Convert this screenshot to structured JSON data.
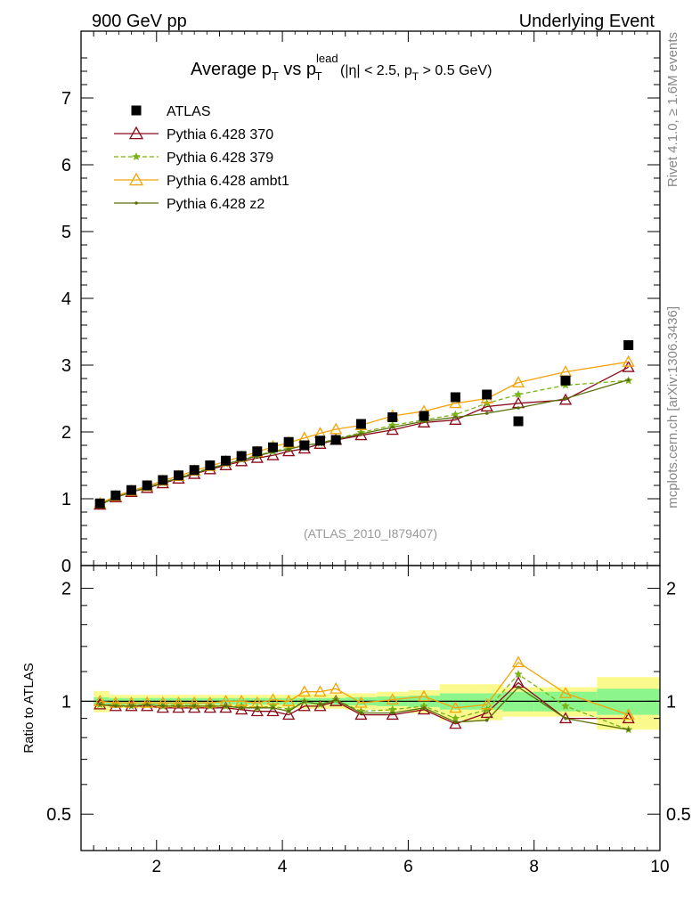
{
  "header": {
    "left": "900 GeV pp",
    "right": "Underlying Event",
    "analysis_id": "(ATLAS_2010_I879407)",
    "side_right_top": "Rivet 4.1.0, ≥ 1.6M events",
    "side_right_bottom": "mcplots.cern.ch [arXiv:1306.3436]"
  },
  "chart_data": {
    "type": "line",
    "title": {
      "main": "Average p",
      "sub_T1": "T",
      "vs": " vs p",
      "sup_lead": "lead",
      "sub_T2": "T",
      "cuts_a": " (|η| < 2.5, p",
      "sub_T3": "T",
      "cuts_b": " > 0.5 GeV)"
    },
    "ratio_ylabel": "Ratio to ATLAS",
    "xlim": [
      0.8,
      10.0
    ],
    "ylim": [
      0.0,
      8.0
    ],
    "ratio_ylim": [
      0.4,
      2.3
    ],
    "x_ticks": [
      "2",
      "4",
      "6",
      "8",
      "10"
    ],
    "y_ticks": [
      "0",
      "1",
      "2",
      "3",
      "4",
      "5",
      "6",
      "7"
    ],
    "ratio_ticks": [
      "0.5",
      "1",
      "2"
    ],
    "x": [
      1.1,
      1.35,
      1.6,
      1.85,
      2.1,
      2.35,
      2.6,
      2.85,
      3.1,
      3.35,
      3.6,
      3.85,
      4.1,
      4.35,
      4.6,
      4.85,
      5.25,
      5.75,
      6.25,
      6.75,
      7.25,
      7.75,
      8.5,
      9.5
    ],
    "series": [
      {
        "name": "ATLAS",
        "color": "#000000",
        "style": "square",
        "values": [
          0.93,
          1.05,
          1.13,
          1.2,
          1.28,
          1.35,
          1.43,
          1.5,
          1.57,
          1.64,
          1.71,
          1.77,
          1.85,
          1.8,
          1.87,
          1.88,
          2.12,
          2.22,
          2.24,
          2.52,
          2.56,
          2.16,
          2.77,
          3.3
        ]
      },
      {
        "name": "Pythia 6.428 370",
        "color": "#8b0a1a",
        "style": "triangle",
        "values": [
          0.91,
          1.02,
          1.1,
          1.16,
          1.23,
          1.3,
          1.37,
          1.44,
          1.5,
          1.56,
          1.61,
          1.65,
          1.71,
          1.75,
          1.82,
          1.88,
          1.95,
          2.03,
          2.14,
          2.18,
          2.38,
          2.43,
          2.48,
          2.97
        ]
      },
      {
        "name": "Pythia 6.428 379",
        "color": "#7ab317",
        "style": "star-dashed",
        "values": [
          0.91,
          1.03,
          1.1,
          1.17,
          1.24,
          1.32,
          1.39,
          1.46,
          1.52,
          1.59,
          1.65,
          1.71,
          1.76,
          1.8,
          1.83,
          1.9,
          1.99,
          2.1,
          2.18,
          2.26,
          2.43,
          2.56,
          2.7,
          2.77
        ]
      },
      {
        "name": "Pythia 6.428 ambt1",
        "color": "#f5a30a",
        "style": "triangle",
        "values": [
          0.93,
          1.04,
          1.12,
          1.19,
          1.27,
          1.34,
          1.42,
          1.49,
          1.56,
          1.63,
          1.7,
          1.78,
          1.84,
          1.91,
          1.98,
          2.04,
          2.1,
          2.24,
          2.31,
          2.43,
          2.5,
          2.74,
          2.9,
          3.05
        ]
      },
      {
        "name": "Pythia 6.428 z2",
        "color": "#5a6e0a",
        "style": "dot",
        "values": [
          0.91,
          1.02,
          1.1,
          1.17,
          1.24,
          1.31,
          1.38,
          1.45,
          1.52,
          1.58,
          1.64,
          1.7,
          1.74,
          1.8,
          1.83,
          1.89,
          1.97,
          2.07,
          2.16,
          2.22,
          2.28,
          2.36,
          2.5,
          2.78
        ]
      }
    ],
    "ratio_series": [
      {
        "name": "Pythia 6.428 370",
        "values": [
          0.98,
          0.97,
          0.97,
          0.97,
          0.96,
          0.96,
          0.96,
          0.96,
          0.96,
          0.95,
          0.94,
          0.94,
          0.92,
          0.97,
          0.97,
          1.0,
          0.92,
          0.92,
          0.95,
          0.87,
          0.93,
          1.12,
          0.9,
          0.9
        ]
      },
      {
        "name": "Pythia 6.428 379",
        "values": [
          0.98,
          0.98,
          0.97,
          0.98,
          0.97,
          0.98,
          0.97,
          0.97,
          0.97,
          0.97,
          0.96,
          0.97,
          0.95,
          1.0,
          0.98,
          1.01,
          0.94,
          0.95,
          0.97,
          0.9,
          0.95,
          1.18,
          0.97,
          0.84
        ]
      },
      {
        "name": "Pythia 6.428 ambt1",
        "values": [
          1.0,
          0.99,
          0.99,
          0.99,
          0.99,
          0.99,
          0.99,
          0.99,
          1.0,
          1.0,
          0.99,
          1.01,
          1.0,
          1.06,
          1.06,
          1.08,
          0.99,
          1.01,
          1.03,
          0.96,
          0.98,
          1.27,
          1.05,
          0.92
        ]
      },
      {
        "name": "Pythia 6.428 z2",
        "values": [
          0.98,
          0.97,
          0.97,
          0.98,
          0.97,
          0.97,
          0.97,
          0.97,
          0.97,
          0.96,
          0.96,
          0.96,
          0.94,
          1.0,
          0.98,
          1.01,
          0.93,
          0.93,
          0.96,
          0.88,
          0.89,
          1.09,
          0.9,
          0.84
        ]
      }
    ],
    "ratio_bands": [
      {
        "x0": 1.0,
        "x1": 1.25,
        "stat": 0.025,
        "syst": 0.065
      },
      {
        "x0": 1.25,
        "x1": 1.5,
        "stat": 0.02,
        "syst": 0.04
      },
      {
        "x0": 1.5,
        "x1": 1.75,
        "stat": 0.02,
        "syst": 0.04
      },
      {
        "x0": 1.75,
        "x1": 2.0,
        "stat": 0.02,
        "syst": 0.04
      },
      {
        "x0": 2.0,
        "x1": 2.25,
        "stat": 0.02,
        "syst": 0.04
      },
      {
        "x0": 2.25,
        "x1": 2.5,
        "stat": 0.02,
        "syst": 0.04
      },
      {
        "x0": 2.5,
        "x1": 2.75,
        "stat": 0.02,
        "syst": 0.04
      },
      {
        "x0": 2.75,
        "x1": 3.0,
        "stat": 0.02,
        "syst": 0.04
      },
      {
        "x0": 3.0,
        "x1": 3.25,
        "stat": 0.02,
        "syst": 0.04
      },
      {
        "x0": 3.25,
        "x1": 3.5,
        "stat": 0.02,
        "syst": 0.04
      },
      {
        "x0": 3.5,
        "x1": 3.75,
        "stat": 0.02,
        "syst": 0.04
      },
      {
        "x0": 3.75,
        "x1": 4.0,
        "stat": 0.02,
        "syst": 0.04
      },
      {
        "x0": 4.0,
        "x1": 4.25,
        "stat": 0.02,
        "syst": 0.04
      },
      {
        "x0": 4.25,
        "x1": 4.5,
        "stat": 0.02,
        "syst": 0.045
      },
      {
        "x0": 4.5,
        "x1": 4.75,
        "stat": 0.02,
        "syst": 0.045
      },
      {
        "x0": 4.75,
        "x1": 5.0,
        "stat": 0.02,
        "syst": 0.045
      },
      {
        "x0": 5.0,
        "x1": 5.5,
        "stat": 0.025,
        "syst": 0.05
      },
      {
        "x0": 5.5,
        "x1": 6.0,
        "stat": 0.03,
        "syst": 0.06
      },
      {
        "x0": 6.0,
        "x1": 6.5,
        "stat": 0.035,
        "syst": 0.07
      },
      {
        "x0": 6.5,
        "x1": 7.0,
        "stat": 0.05,
        "syst": 0.11
      },
      {
        "x0": 7.0,
        "x1": 7.5,
        "stat": 0.05,
        "syst": 0.11
      },
      {
        "x0": 7.5,
        "x1": 8.0,
        "stat": 0.06,
        "syst": 0.09
      },
      {
        "x0": 8.0,
        "x1": 9.0,
        "stat": 0.06,
        "syst": 0.09
      },
      {
        "x0": 9.0,
        "x1": 10.0,
        "stat": 0.08,
        "syst": 0.16
      }
    ],
    "band_colors": {
      "stat": "#8cf58c",
      "syst": "#fafa8c"
    }
  }
}
